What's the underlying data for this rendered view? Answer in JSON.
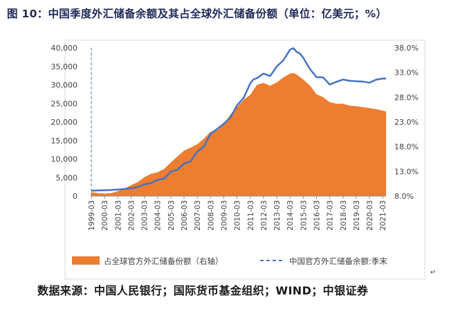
{
  "title": "图 10：中国季度外汇储备余额及其占全球外汇储备份额（单位：亿美元；%）",
  "source": "数据来源：中国人民银行；国际货币基金组织；WIND；中银证券",
  "colors": {
    "area": "#ED7D31",
    "line": "#4472C4"
  },
  "chart_data": {
    "type": "area",
    "xlabel": "",
    "ylabel": "",
    "y_left_lim": [
      0,
      40000
    ],
    "y_left_ticks": [
      "0",
      "5,000",
      "10,000",
      "15,000",
      "20,000",
      "25,000",
      "30,000",
      "35,000",
      "40,000"
    ],
    "y_right_lim": [
      8.0,
      38.0
    ],
    "y_right_ticks": [
      "8.0%",
      "13.0%",
      "18.0%",
      "23.0%",
      "28.0%",
      "33.0%",
      "38.0%"
    ],
    "x_tick_labels": [
      "1999-03",
      "2000-03",
      "2001-03",
      "2002-03",
      "2003-03",
      "2004-03",
      "2005-03",
      "2006-03",
      "2007-03",
      "2008-03",
      "2009-03",
      "2010-03",
      "2011-03",
      "2012-03",
      "2013-03",
      "2014-03",
      "2015-03",
      "2016-03",
      "2017-03",
      "2018-03",
      "2019-03",
      "2020-03",
      "2021-03"
    ],
    "grid": false,
    "legend_position": "bottom",
    "series": [
      {
        "name": "占全球官方外汇储备份额（右轴）",
        "axis": "right",
        "kind": "area",
        "x": [
          1999.0,
          1999.5,
          2000.0,
          2000.5,
          2001.0,
          2001.5,
          2002.0,
          2002.5,
          2003.0,
          2003.5,
          2004.0,
          2004.5,
          2005.0,
          2005.5,
          2006.0,
          2006.5,
          2007.0,
          2007.5,
          2008.0,
          2008.5,
          2009.0,
          2009.5,
          2010.0,
          2010.5,
          2011.0,
          2011.5,
          2012.0,
          2012.5,
          2013.0,
          2013.5,
          2014.0,
          2014.25,
          2014.5,
          2015.0,
          2015.5,
          2016.0,
          2016.5,
          2017.0,
          2017.5,
          2018.0,
          2018.5,
          2019.0,
          2019.5,
          2020.0,
          2020.5,
          2021.0,
          2021.25
        ],
        "y": [
          8.8,
          8.6,
          8.5,
          8.6,
          9.0,
          9.5,
          10.2,
          10.8,
          11.8,
          12.5,
          12.8,
          13.5,
          14.8,
          16.0,
          17.2,
          17.8,
          18.5,
          19.6,
          21.0,
          21.3,
          22.5,
          24.5,
          26.0,
          27.5,
          28.5,
          30.5,
          30.9,
          30.3,
          31.0,
          32.0,
          32.8,
          32.9,
          32.6,
          31.6,
          30.4,
          28.6,
          28.0,
          27.0,
          26.7,
          26.7,
          26.3,
          26.2,
          26.0,
          25.8,
          25.6,
          25.3,
          25.1
        ]
      },
      {
        "name": "中国官方外汇储备余额:季末",
        "axis": "left",
        "kind": "line",
        "x": [
          1999.0,
          1999.5,
          2000.0,
          2000.5,
          2001.0,
          2001.5,
          2002.0,
          2002.5,
          2003.0,
          2003.5,
          2004.0,
          2004.5,
          2005.0,
          2005.5,
          2006.0,
          2006.5,
          2007.0,
          2007.5,
          2008.0,
          2008.5,
          2009.0,
          2009.5,
          2010.0,
          2010.5,
          2011.0,
          2011.25,
          2011.5,
          2012.0,
          2012.5,
          2013.0,
          2013.5,
          2014.0,
          2014.25,
          2014.5,
          2014.75,
          2015.0,
          2015.5,
          2016.0,
          2016.5,
          2017.0,
          2017.5,
          2018.0,
          2018.5,
          2019.0,
          2019.5,
          2020.0,
          2020.5,
          2021.0,
          2021.25
        ],
        "y": [
          1460,
          1520,
          1570,
          1620,
          1760,
          1900,
          2120,
          2440,
          3160,
          3480,
          4390,
          4710,
          6600,
          7100,
          8750,
          9410,
          12020,
          13330,
          16820,
          18090,
          19540,
          21200,
          24470,
          26500,
          30450,
          31500,
          31800,
          33050,
          32400,
          34960,
          36630,
          39500,
          39900,
          38900,
          38430,
          37300,
          34300,
          32100,
          32000,
          30090,
          30800,
          31430,
          31100,
          30990,
          30900,
          30600,
          31400,
          31700,
          31700
        ]
      }
    ]
  }
}
